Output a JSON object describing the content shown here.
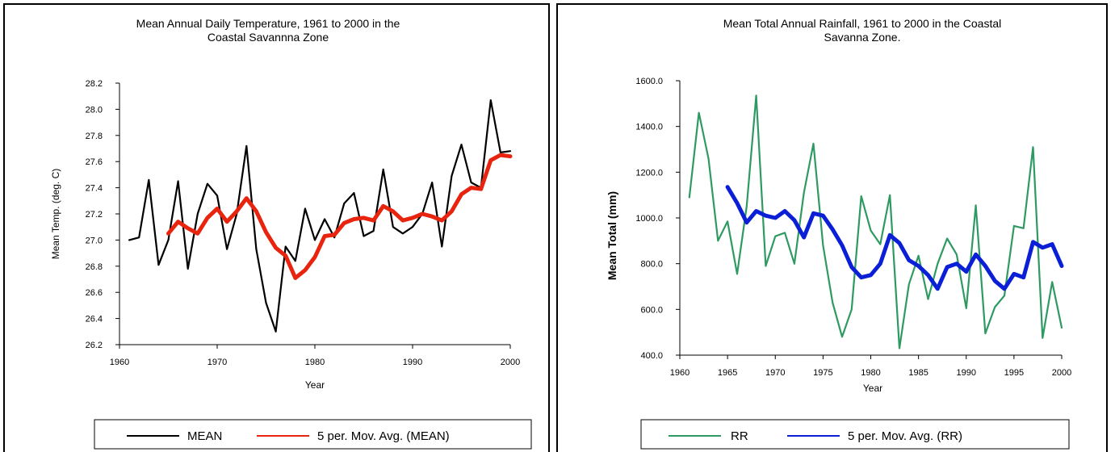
{
  "chart_data": [
    {
      "type": "line",
      "title_lines": [
        "Mean Annual Daily Temperature, 1961 to 2000 in the",
        "Coastal Savannna Zone"
      ],
      "xlabel": "Year",
      "ylabel": "Mean Temp. (deg. C)",
      "xlim": [
        1960,
        2000
      ],
      "ylim": [
        26.2,
        28.2
      ],
      "xticks": [
        "1960",
        "1970",
        "1980",
        "1990",
        "2000"
      ],
      "yticks": [
        "26.2",
        "26.4",
        "26.6",
        "26.8",
        "27.0",
        "27.2",
        "27.4",
        "27.6",
        "27.8",
        "28.0",
        "28.2"
      ],
      "grid": false,
      "legend_position": "bottom",
      "series": [
        {
          "name": "MEAN",
          "color": "#000000",
          "x": [
            1961,
            1962,
            1963,
            1964,
            1965,
            1966,
            1967,
            1968,
            1969,
            1970,
            1971,
            1972,
            1973,
            1974,
            1975,
            1976,
            1977,
            1978,
            1979,
            1980,
            1981,
            1982,
            1983,
            1984,
            1985,
            1986,
            1987,
            1988,
            1989,
            1990,
            1991,
            1992,
            1993,
            1994,
            1995,
            1996,
            1997,
            1998,
            1999,
            2000
          ],
          "y": [
            27.0,
            27.02,
            27.46,
            26.81,
            27.0,
            27.45,
            26.78,
            27.2,
            27.43,
            27.34,
            26.93,
            27.2,
            27.72,
            26.93,
            26.52,
            26.3,
            26.95,
            26.84,
            27.24,
            27.0,
            27.16,
            27.02,
            27.28,
            27.36,
            27.03,
            27.07,
            27.54,
            27.1,
            27.05,
            27.1,
            27.2,
            27.44,
            26.95,
            27.49,
            27.73,
            27.44,
            27.4,
            28.07,
            27.67,
            27.68
          ]
        },
        {
          "name": "5 per. Mov. Avg. (MEAN)",
          "color": "#e8240f",
          "x": [
            1965,
            1966,
            1967,
            1968,
            1969,
            1970,
            1971,
            1972,
            1973,
            1974,
            1975,
            1976,
            1977,
            1978,
            1979,
            1980,
            1981,
            1982,
            1983,
            1984,
            1985,
            1986,
            1987,
            1988,
            1989,
            1990,
            1991,
            1992,
            1993,
            1994,
            1995,
            1996,
            1997,
            1998,
            1999,
            2000
          ],
          "y": [
            27.05,
            27.14,
            27.09,
            27.05,
            27.17,
            27.24,
            27.14,
            27.22,
            27.32,
            27.22,
            27.06,
            26.94,
            26.88,
            26.71,
            26.77,
            26.87,
            27.03,
            27.04,
            27.13,
            27.16,
            27.17,
            27.15,
            27.26,
            27.22,
            27.15,
            27.17,
            27.2,
            27.18,
            27.15,
            27.22,
            27.35,
            27.4,
            27.39,
            27.61,
            27.65,
            27.64
          ]
        }
      ]
    },
    {
      "type": "line",
      "title_lines": [
        "Mean Total Annual Rainfall, 1961 to 2000 in the Coastal",
        "Savanna Zone."
      ],
      "xlabel": "Year",
      "ylabel": "Mean Total (mm)",
      "xlim": [
        1960,
        2000
      ],
      "ylim": [
        400,
        1600
      ],
      "xticks": [
        "1960",
        "1965",
        "1970",
        "1975",
        "1980",
        "1985",
        "1990",
        "1995",
        "2000"
      ],
      "yticks": [
        "400.0",
        "600.0",
        "800.0",
        "1000.0",
        "1200.0",
        "1400.0",
        "1600.0"
      ],
      "grid": false,
      "legend_position": "bottom",
      "series": [
        {
          "name": "RR",
          "color": "#2e9a62",
          "x": [
            1961,
            1962,
            1963,
            1964,
            1965,
            1966,
            1967,
            1968,
            1969,
            1970,
            1971,
            1972,
            1973,
            1974,
            1975,
            1976,
            1977,
            1978,
            1979,
            1980,
            1981,
            1982,
            1983,
            1984,
            1985,
            1986,
            1987,
            1988,
            1989,
            1990,
            1991,
            1992,
            1993,
            1994,
            1995,
            1996,
            1997,
            1998,
            1999,
            2000
          ],
          "y": [
            1090,
            1460,
            1260,
            900,
            985,
            755,
            1050,
            1535,
            790,
            920,
            935,
            800,
            1110,
            1325,
            880,
            630,
            480,
            600,
            1095,
            945,
            885,
            1100,
            430,
            710,
            835,
            645,
            800,
            910,
            840,
            605,
            1055,
            495,
            610,
            660,
            965,
            955,
            1310,
            475,
            720,
            520
          ]
        },
        {
          "name": "5 per. Mov. Avg. (RR)",
          "color": "#0a1fd6",
          "x": [
            1965,
            1966,
            1967,
            1968,
            1969,
            1970,
            1971,
            1972,
            1973,
            1974,
            1975,
            1976,
            1977,
            1978,
            1979,
            1980,
            1981,
            1982,
            1983,
            1984,
            1985,
            1986,
            1987,
            1988,
            1989,
            1990,
            1991,
            1992,
            1993,
            1994,
            1995,
            1996,
            1997,
            1998,
            1999,
            2000
          ],
          "y": [
            1135,
            1065,
            980,
            1030,
            1010,
            1000,
            1030,
            990,
            915,
            1020,
            1010,
            950,
            880,
            785,
            740,
            750,
            800,
            925,
            890,
            815,
            790,
            750,
            690,
            785,
            800,
            765,
            840,
            790,
            725,
            690,
            755,
            740,
            895,
            870,
            885,
            790
          ]
        }
      ]
    }
  ]
}
